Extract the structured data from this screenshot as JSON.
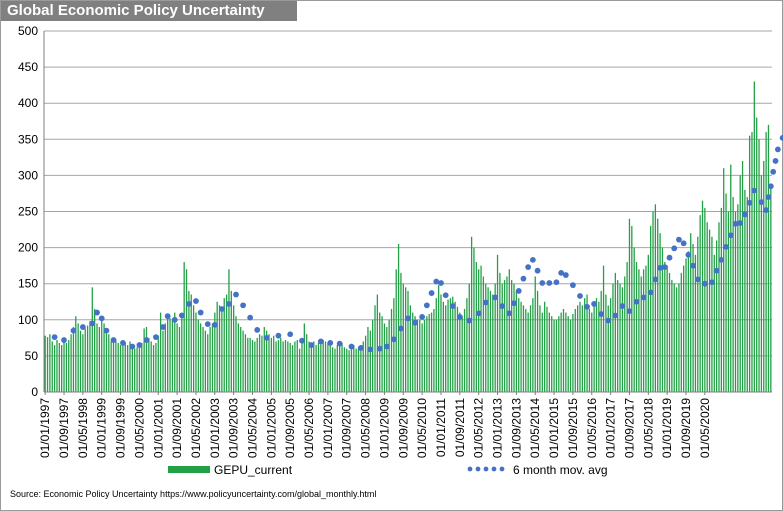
{
  "title": "Global Economic Policy Uncertainty",
  "source": "Source: Economic Policy Uncertainty https://www.policyuncertainty.com/global_monthly.html",
  "colors": {
    "bar": "#22a046",
    "dots": "#4472c4",
    "title_bg": "#808080",
    "grid": "#a6a6a6"
  },
  "chart_data": {
    "type": "bar",
    "title": "Global Economic Policy Uncertainty",
    "xlabel": "",
    "ylabel": "",
    "ylim": [
      0,
      500
    ],
    "yticks": [
      0,
      50,
      100,
      150,
      200,
      250,
      300,
      350,
      400,
      450,
      500
    ],
    "x_tick_labels": [
      "01/01/1997",
      "01/09/1997",
      "01/05/1998",
      "01/01/1999",
      "01/09/1999",
      "01/05/2000",
      "01/01/2001",
      "01/09/2001",
      "01/05/2002",
      "01/01/2003",
      "01/09/2003",
      "01/05/2004",
      "01/01/2005",
      "01/09/2005",
      "01/05/2006",
      "01/01/2007",
      "01/09/2007",
      "01/05/2008",
      "01/01/2009",
      "01/09/2009",
      "01/05/2010",
      "01/01/2011",
      "01/09/2011",
      "01/05/2012",
      "01/01/2013",
      "01/09/2013",
      "01/05/2014",
      "01/01/2015",
      "01/09/2015",
      "01/05/2016",
      "01/01/2017",
      "01/09/2017",
      "01/05/2018",
      "01/01/2019",
      "01/09/2019",
      "01/05/2020"
    ],
    "start": "01/01/1997",
    "frequency": "monthly",
    "legend": [
      "GEPU_current",
      "6 month mov. avg"
    ],
    "legend_position": "bottom",
    "series": [
      {
        "name": "GEPU_current",
        "type": "bar",
        "values": [
          78,
          76,
          80,
          70,
          65,
          72,
          68,
          65,
          70,
          68,
          72,
          80,
          90,
          105,
          95,
          85,
          80,
          88,
          92,
          98,
          145,
          115,
          95,
          90,
          100,
          95,
          85,
          80,
          70,
          75,
          72,
          68,
          65,
          70,
          68,
          65,
          70,
          65,
          60,
          62,
          65,
          68,
          88,
          90,
          75,
          70,
          65,
          68,
          78,
          110,
          85,
          95,
          105,
          102,
          100,
          110,
          95,
          90,
          110,
          180,
          170,
          140,
          135,
          120,
          110,
          100,
          95,
          90,
          85,
          80,
          90,
          95,
          110,
          125,
          120,
          115,
          130,
          135,
          170,
          140,
          120,
          105,
          95,
          90,
          85,
          80,
          75,
          75,
          72,
          70,
          75,
          80,
          78,
          90,
          85,
          80,
          75,
          78,
          70,
          72,
          75,
          70,
          72,
          70,
          68,
          65,
          70,
          72,
          60,
          75,
          95,
          80,
          70,
          68,
          70,
          65,
          68,
          70,
          72,
          70,
          68,
          65,
          62,
          60,
          65,
          70,
          68,
          62,
          60,
          58,
          60,
          65,
          60,
          62,
          65,
          70,
          78,
          90,
          85,
          100,
          120,
          135,
          110,
          105,
          95,
          90,
          100,
          115,
          130,
          170,
          205,
          165,
          150,
          145,
          140,
          120,
          110,
          105,
          100,
          100,
          95,
          100,
          105,
          108,
          110,
          115,
          130,
          148,
          135,
          125,
          120,
          128,
          130,
          132,
          125,
          118,
          110,
          105,
          115,
          130,
          150,
          215,
          200,
          180,
          170,
          175,
          160,
          150,
          145,
          140,
          135,
          150,
          190,
          165,
          150,
          155,
          160,
          170,
          155,
          150,
          140,
          130,
          125,
          120,
          115,
          110,
          120,
          130,
          160,
          140,
          120,
          110,
          125,
          118,
          110,
          105,
          100,
          100,
          105,
          110,
          115,
          110,
          105,
          100,
          108,
          115,
          120,
          125,
          120,
          130,
          135,
          115,
          110,
          120,
          130,
          125,
          140,
          175,
          135,
          120,
          130,
          150,
          165,
          155,
          150,
          145,
          160,
          180,
          240,
          230,
          200,
          180,
          170,
          160,
          170,
          175,
          190,
          230,
          250,
          260,
          240,
          220,
          200,
          180,
          175,
          165,
          155,
          150,
          145,
          150,
          165,
          175,
          185,
          195,
          220,
          205,
          190,
          215,
          245,
          265,
          255,
          235,
          225,
          215,
          190,
          210,
          235,
          255,
          310,
          275,
          250,
          315,
          270,
          250,
          260,
          300,
          320,
          280,
          270,
          355,
          360,
          430,
          380,
          350,
          300,
          320,
          360,
          370,
          285
        ]
      },
      {
        "name": "6 month mov. avg",
        "type": "scatter",
        "points": [
          [
            4,
            76
          ],
          [
            8,
            72
          ],
          [
            12,
            85
          ],
          [
            16,
            90
          ],
          [
            20,
            95
          ],
          [
            22,
            110
          ],
          [
            24,
            102
          ],
          [
            26,
            85
          ],
          [
            29,
            72
          ],
          [
            33,
            68
          ],
          [
            37,
            63
          ],
          [
            40,
            65
          ],
          [
            43,
            72
          ],
          [
            47,
            76
          ],
          [
            50,
            90
          ],
          [
            52,
            105
          ],
          [
            55,
            100
          ],
          [
            58,
            106
          ],
          [
            61,
            122
          ],
          [
            64,
            126
          ],
          [
            66,
            110
          ],
          [
            69,
            94
          ],
          [
            72,
            93
          ],
          [
            75,
            115
          ],
          [
            78,
            122
          ],
          [
            81,
            135
          ],
          [
            84,
            120
          ],
          [
            87,
            103
          ],
          [
            90,
            86
          ],
          [
            94,
            75
          ],
          [
            99,
            78
          ],
          [
            104,
            80
          ],
          [
            109,
            71
          ],
          [
            113,
            65
          ],
          [
            117,
            70
          ],
          [
            121,
            68
          ],
          [
            125,
            67
          ],
          [
            130,
            63
          ],
          [
            134,
            61
          ],
          [
            138,
            59
          ],
          [
            142,
            60
          ],
          [
            145,
            63
          ],
          [
            148,
            73
          ],
          [
            151,
            88
          ],
          [
            154,
            102
          ],
          [
            157,
            96
          ],
          [
            160,
            104
          ],
          [
            162,
            120
          ],
          [
            164,
            137
          ],
          [
            166,
            153
          ],
          [
            168,
            151
          ],
          [
            170,
            134
          ],
          [
            173,
            119
          ],
          [
            176,
            104
          ],
          [
            180,
            99
          ],
          [
            184,
            109
          ],
          [
            187,
            124
          ],
          [
            191,
            131
          ],
          [
            194,
            119
          ],
          [
            197,
            109
          ],
          [
            199,
            123
          ],
          [
            201,
            140
          ],
          [
            203,
            157
          ],
          [
            205,
            173
          ],
          [
            207,
            183
          ],
          [
            209,
            168
          ],
          [
            211,
            151
          ],
          [
            214,
            151
          ],
          [
            217,
            152
          ],
          [
            219,
            165
          ],
          [
            221,
            162
          ],
          [
            224,
            148
          ],
          [
            227,
            133
          ],
          [
            230,
            118
          ],
          [
            233,
            122
          ],
          [
            236,
            108
          ],
          [
            239,
            99
          ],
          [
            242,
            106
          ],
          [
            245,
            119
          ],
          [
            248,
            112
          ],
          [
            251,
            125
          ],
          [
            254,
            131
          ],
          [
            257,
            138
          ],
          [
            259,
            156
          ],
          [
            261,
            172
          ],
          [
            263,
            173
          ],
          [
            265,
            186
          ],
          [
            267,
            199
          ],
          [
            269,
            211
          ],
          [
            271,
            206
          ],
          [
            273,
            190
          ],
          [
            275,
            175
          ],
          [
            277,
            156
          ],
          [
            280,
            150
          ],
          [
            283,
            152
          ],
          [
            285,
            168
          ],
          [
            287,
            183
          ],
          [
            289,
            201
          ],
          [
            291,
            217
          ],
          [
            293,
            233
          ],
          [
            295,
            234
          ],
          [
            297,
            246
          ],
          [
            299,
            262
          ],
          [
            301,
            279
          ],
          [
            304,
            263
          ],
          [
            306,
            252
          ],
          [
            307,
            270
          ],
          [
            308,
            285
          ],
          [
            309,
            305
          ],
          [
            310,
            320
          ],
          [
            311,
            336
          ],
          [
            313,
            352
          ],
          [
            315,
            340
          ],
          [
            317,
            323
          ]
        ]
      }
    ]
  }
}
